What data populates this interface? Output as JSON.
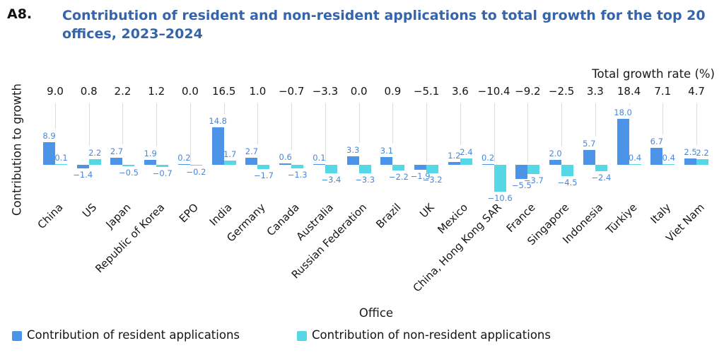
{
  "header": {
    "code": "A8.",
    "title_line1": "Contribution of resident and non-resident applications to total growth for the top 20",
    "title_line2": "offices, 2023–2024",
    "title_color": "#3465ac"
  },
  "chart_data": {
    "type": "bar",
    "top_axis_label": "Total growth rate (%)",
    "ylabel": "Contribution to growth",
    "xlabel": "Office",
    "categories": [
      "China",
      "US",
      "Japan",
      "Republic of Korea",
      "EPO",
      "India",
      "Germany",
      "Canada",
      "Australia",
      "Russian Federation",
      "Brazil",
      "UK",
      "Mexico",
      "China, Hong Kong SAR",
      "France",
      "Singapore",
      "Indonesia",
      "Türkiye",
      "Italy",
      "Viet Nam"
    ],
    "totals": [
      9.0,
      0.8,
      2.2,
      1.2,
      0.0,
      16.5,
      1.0,
      -0.7,
      -3.3,
      0.0,
      0.9,
      -5.1,
      3.6,
      -10.4,
      -9.2,
      -2.5,
      3.3,
      18.4,
      7.1,
      4.7
    ],
    "series": [
      {
        "name": "Contribution of resident applications",
        "color": "#4b94e8",
        "values": [
          8.9,
          -1.4,
          2.7,
          1.9,
          0.2,
          14.8,
          2.7,
          0.6,
          0.1,
          3.3,
          3.1,
          -1.9,
          1.2,
          0.2,
          -5.5,
          2.0,
          5.7,
          18.0,
          6.7,
          2.5
        ]
      },
      {
        "name": "Contribution of non-resident applications",
        "color": "#55d7e6",
        "values": [
          0.1,
          2.2,
          -0.5,
          -0.7,
          -0.2,
          1.7,
          -1.7,
          -1.3,
          -3.4,
          -3.3,
          -2.2,
          -3.2,
          2.4,
          -10.6,
          -3.7,
          -4.5,
          -2.4,
          0.4,
          0.4,
          2.2
        ]
      }
    ],
    "value_label_color": "#4a86d8",
    "drop_line_color": "#dcdcdc",
    "grid": false,
    "legend_position": "bottom-left",
    "ylim_hint": [
      -11,
      19
    ]
  }
}
